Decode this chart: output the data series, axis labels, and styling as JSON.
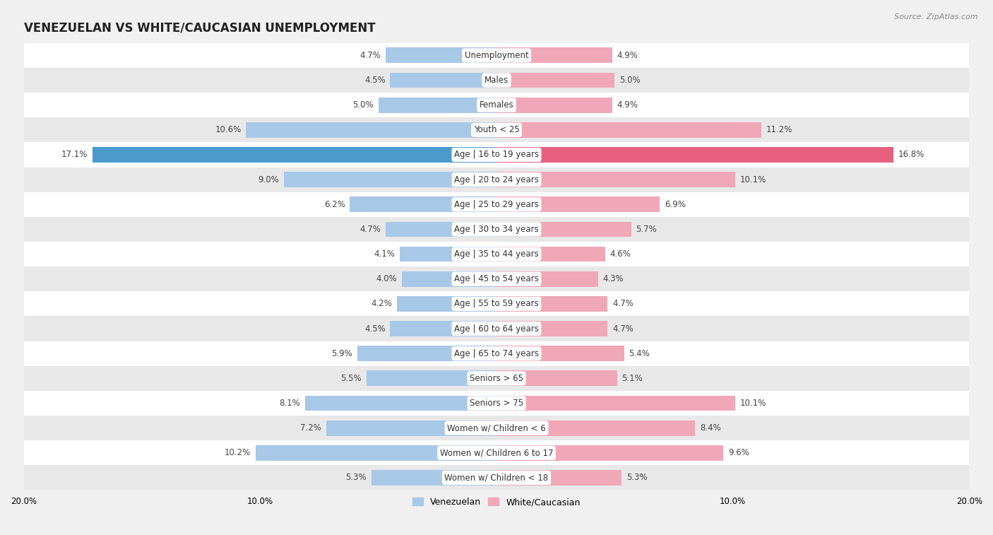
{
  "title": "VENEZUELAN VS WHITE/CAUCASIAN UNEMPLOYMENT",
  "source": "Source: ZipAtlas.com",
  "categories": [
    "Unemployment",
    "Males",
    "Females",
    "Youth < 25",
    "Age | 16 to 19 years",
    "Age | 20 to 24 years",
    "Age | 25 to 29 years",
    "Age | 30 to 34 years",
    "Age | 35 to 44 years",
    "Age | 45 to 54 years",
    "Age | 55 to 59 years",
    "Age | 60 to 64 years",
    "Age | 65 to 74 years",
    "Seniors > 65",
    "Seniors > 75",
    "Women w/ Children < 6",
    "Women w/ Children 6 to 17",
    "Women w/ Children < 18"
  ],
  "venezuelan": [
    4.7,
    4.5,
    5.0,
    10.6,
    17.1,
    9.0,
    6.2,
    4.7,
    4.1,
    4.0,
    4.2,
    4.5,
    5.9,
    5.5,
    8.1,
    7.2,
    10.2,
    5.3
  ],
  "white_caucasian": [
    4.9,
    5.0,
    4.9,
    11.2,
    16.8,
    10.1,
    6.9,
    5.7,
    4.6,
    4.3,
    4.7,
    4.7,
    5.4,
    5.1,
    10.1,
    8.4,
    9.6,
    5.3
  ],
  "venezuelan_color": "#a8c8e8",
  "white_caucasian_color": "#f0a8b8",
  "highlighted_venezuelan_color": "#4a9acc",
  "highlighted_white_caucasian_color": "#e86080",
  "highlight_indices": [
    4
  ],
  "xlim": 20.0,
  "bar_height": 0.62,
  "background_color": "#f0f0f0",
  "row_bg_colors": [
    "#ffffff",
    "#e8e8e8"
  ],
  "title_fontsize": 12,
  "label_fontsize": 8.5,
  "value_fontsize": 8.5,
  "legend_fontsize": 9,
  "cat_label_fontsize": 8.5
}
